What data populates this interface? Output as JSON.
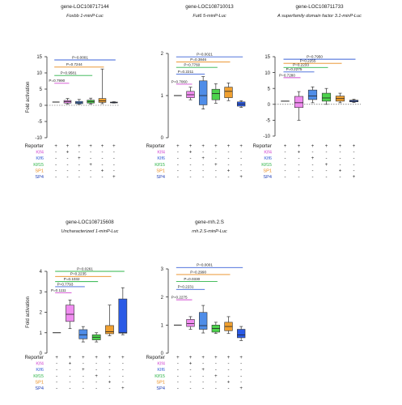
{
  "y_axis_label": "Fold activation",
  "reporter_label": "Reporter",
  "factor_rows": [
    {
      "name": "Klf4",
      "color": "#d24bd0"
    },
    {
      "name": "Klf6",
      "color": "#3a62d8"
    },
    {
      "name": "Klf15",
      "color": "#2fb54a"
    },
    {
      "name": "SP1",
      "color": "#e88a1a"
    },
    {
      "name": "SP4",
      "color": "#1f3fb8"
    }
  ],
  "box_colors": [
    "#ffffff",
    "#f08cf0",
    "#4f8de8",
    "#4cd34c",
    "#f0a030",
    "#2a5ae6"
  ],
  "chart_data": [
    {
      "type": "box",
      "title": "gene-LOC108717144",
      "subtitle": "Foxbb 1-minP-Luc",
      "ylabel": "Fold activation",
      "ylim": [
        -10,
        15
      ],
      "yticks": [
        -10,
        -5,
        0,
        5,
        10,
        15
      ],
      "show_y_label": true,
      "series": [
        {
          "q1": 1,
          "median": 1,
          "q3": 1,
          "min": 1,
          "max": 1
        },
        {
          "q1": 0.7,
          "median": 1.1,
          "q3": 1.5,
          "min": 0.4,
          "max": 2.1
        },
        {
          "q1": 0.5,
          "median": 0.8,
          "q3": 1.2,
          "min": 0.3,
          "max": 1.8
        },
        {
          "q1": 0.7,
          "median": 1.1,
          "q3": 1.6,
          "min": 0.4,
          "max": 2.2
        },
        {
          "q1": 0.9,
          "median": 1.4,
          "q3": 2.1,
          "min": 0.5,
          "max": 11.2
        },
        {
          "q1": 0.8,
          "median": 0.9,
          "q3": 1.0,
          "min": 0.7,
          "max": 1.1
        }
      ],
      "comparisons": [
        {
          "label": "P=0.0001",
          "level": 14,
          "color": "#3a62d8",
          "from": 0,
          "to": 5
        },
        {
          "label": "P=0.7244",
          "level": 11.8,
          "color": "#e88a1a",
          "from": 0,
          "to": 4
        },
        {
          "label": "P=0.9581",
          "level": 9.2,
          "color": "#2fb54a",
          "from": 0,
          "to": 3
        },
        {
          "label": "P=0.7990",
          "level": 6.8,
          "color": "#d24bd0",
          "from": 0,
          "to": 1
        }
      ]
    },
    {
      "type": "box",
      "title": "gene-LOC108710013",
      "subtitle": "Fut6 5-minP-Luc",
      "ylabel": "",
      "ylim": [
        0,
        2
      ],
      "yticks": [
        0,
        1,
        2
      ],
      "show_y_label": false,
      "series": [
        {
          "q1": 1,
          "median": 1,
          "q3": 1,
          "min": 1,
          "max": 1
        },
        {
          "q1": 0.95,
          "median": 1.02,
          "q3": 1.1,
          "min": 0.9,
          "max": 1.2
        },
        {
          "q1": 0.78,
          "median": 1.0,
          "q3": 1.35,
          "min": 0.68,
          "max": 1.45
        },
        {
          "q1": 0.9,
          "median": 1.05,
          "q3": 1.15,
          "min": 0.82,
          "max": 1.28
        },
        {
          "q1": 0.95,
          "median": 1.1,
          "q3": 1.2,
          "min": 0.88,
          "max": 1.3
        },
        {
          "q1": 0.75,
          "median": 0.8,
          "q3": 0.85,
          "min": 0.72,
          "max": 0.88
        }
      ],
      "comparisons": [
        {
          "label": "P=0.0021",
          "level": 1.92,
          "color": "#3a62d8",
          "from": 0,
          "to": 5
        },
        {
          "label": "P=0.3846",
          "level": 1.8,
          "color": "#e88a1a",
          "from": 0,
          "to": 4
        },
        {
          "label": "P=0.7760",
          "level": 1.67,
          "color": "#2fb54a",
          "from": 0,
          "to": 3
        },
        {
          "label": "P=0.2211",
          "level": 1.51,
          "color": "#3a62d8",
          "from": 0,
          "to": 2
        },
        {
          "label": "P=0.7060",
          "level": 1.27,
          "color": "#d24bd0",
          "from": 0,
          "to": 1
        }
      ]
    },
    {
      "type": "box",
      "title": "gene-LOC108711733",
      "subtitle": "A superfamily domain factor 3.1-minP-Luc",
      "ylabel": "",
      "ylim": [
        -10,
        15
      ],
      "yticks": [
        -10,
        -5,
        0,
        5,
        10,
        15
      ],
      "show_y_label": false,
      "series": [
        {
          "q1": 1,
          "median": 1,
          "q3": 1,
          "min": 1,
          "max": 1
        },
        {
          "q1": -1,
          "median": 0.5,
          "q3": 2.5,
          "min": -5,
          "max": 4
        },
        {
          "q1": 1.5,
          "median": 2.6,
          "q3": 4.5,
          "min": 0.5,
          "max": 5.5
        },
        {
          "q1": 1,
          "median": 2.0,
          "q3": 3.5,
          "min": 0,
          "max": 5
        },
        {
          "q1": 1,
          "median": 1.8,
          "q3": 2.6,
          "min": 0.5,
          "max": 3.5
        },
        {
          "q1": 0.8,
          "median": 1.0,
          "q3": 1.3,
          "min": 0.6,
          "max": 1.6
        }
      ],
      "comparisons": [
        {
          "label": "P=0.7950",
          "level": 14.2,
          "color": "#3a62d8",
          "from": 0,
          "to": 5
        },
        {
          "label": "P=0.2255",
          "level": 12.9,
          "color": "#e88a1a",
          "from": 0,
          "to": 4
        },
        {
          "label": "P=0.2233",
          "level": 11.6,
          "color": "#2fb54a",
          "from": 0,
          "to": 3
        },
        {
          "label": "P=0.2275",
          "level": 10.2,
          "color": "#3a62d8",
          "from": 0,
          "to": 2
        },
        {
          "label": "P=0.7280",
          "level": 8.4,
          "color": "#d24bd0",
          "from": 0,
          "to": 1
        }
      ]
    },
    {
      "type": "box",
      "title": "gene-LOC108715608",
      "subtitle": "Uncharacterized 1-minP-Luc",
      "ylabel": "Fold activation",
      "ylim": [
        0,
        4
      ],
      "yticks": [
        0,
        1,
        2,
        3,
        4
      ],
      "show_y_label": true,
      "series": [
        {
          "q1": 1,
          "median": 1,
          "q3": 1,
          "min": 1,
          "max": 1
        },
        {
          "q1": 1.55,
          "median": 1.9,
          "q3": 2.35,
          "min": 1.2,
          "max": 2.6
        },
        {
          "q1": 0.7,
          "median": 0.9,
          "q3": 1.15,
          "min": 0.55,
          "max": 1.3
        },
        {
          "q1": 0.65,
          "median": 0.78,
          "q3": 0.9,
          "min": 0.55,
          "max": 1.0
        },
        {
          "q1": 0.95,
          "median": 1.05,
          "q3": 1.35,
          "min": 0.85,
          "max": 2.35
        },
        {
          "q1": 0.98,
          "median": 1.0,
          "q3": 2.65,
          "min": 0.9,
          "max": 3.2
        }
      ],
      "comparisons": [
        {
          "label": "P=0.0261",
          "level": 4.0,
          "color": "#2fb54a",
          "from": 0,
          "to": 5
        },
        {
          "label": "P=0.2235",
          "level": 3.75,
          "color": "#e88a1a",
          "from": 0,
          "to": 4
        },
        {
          "label": "P=0.1032",
          "level": 3.5,
          "color": "#2fb54a",
          "from": 0,
          "to": 3
        },
        {
          "label": "P=0.7793",
          "level": 3.25,
          "color": "#3a62d8",
          "from": 0,
          "to": 2
        },
        {
          "label": "P=0.1111",
          "level": 2.95,
          "color": "#d24bd0",
          "from": 0,
          "to": 1
        }
      ]
    },
    {
      "type": "box",
      "title": "gene-rnh.2.S",
      "subtitle": "rnh.2.S-minP-Luc",
      "ylabel": "",
      "ylim": [
        0,
        3
      ],
      "yticks": [
        0,
        1,
        2,
        3
      ],
      "show_y_label": false,
      "series": [
        {
          "q1": 1,
          "median": 1,
          "q3": 1,
          "min": 1,
          "max": 1
        },
        {
          "q1": 0.95,
          "median": 1.05,
          "q3": 1.2,
          "min": 0.85,
          "max": 1.3
        },
        {
          "q1": 0.85,
          "median": 0.98,
          "q3": 1.45,
          "min": 0.72,
          "max": 1.7
        },
        {
          "q1": 0.75,
          "median": 0.88,
          "q3": 1.0,
          "min": 0.7,
          "max": 1.1
        },
        {
          "q1": 0.8,
          "median": 0.95,
          "q3": 1.1,
          "min": 0.7,
          "max": 1.3
        },
        {
          "q1": 0.55,
          "median": 0.65,
          "q3": 0.85,
          "min": 0.45,
          "max": 0.95
        }
      ],
      "comparisons": [
        {
          "label": "P=0.0001",
          "level": 3.05,
          "color": "#3a62d8",
          "from": 0,
          "to": 5
        },
        {
          "label": "P=0.2990",
          "level": 2.8,
          "color": "#e88a1a",
          "from": 0,
          "to": 4
        },
        {
          "label": "P=0.0330",
          "level": 2.55,
          "color": "#2fb54a",
          "from": 0,
          "to": 3
        },
        {
          "label": "P=0.2231",
          "level": 2.27,
          "color": "#3a62d8",
          "from": 0,
          "to": 2
        },
        {
          "label": "P=0.2275",
          "level": 1.9,
          "color": "#d24bd0",
          "from": 0,
          "to": 1
        }
      ]
    }
  ],
  "sign_matrix": [
    [
      "+",
      "+",
      "+",
      "+",
      "+",
      "+"
    ],
    [
      "-",
      "+",
      "-",
      "-",
      "-",
      "-"
    ],
    [
      "-",
      "-",
      "+",
      "-",
      "-",
      "-"
    ],
    [
      "-",
      "-",
      "-",
      "+",
      "-",
      "-"
    ],
    [
      "-",
      "-",
      "-",
      "-",
      "+",
      "-"
    ],
    [
      "-",
      "-",
      "-",
      "-",
      "-",
      "+"
    ]
  ]
}
